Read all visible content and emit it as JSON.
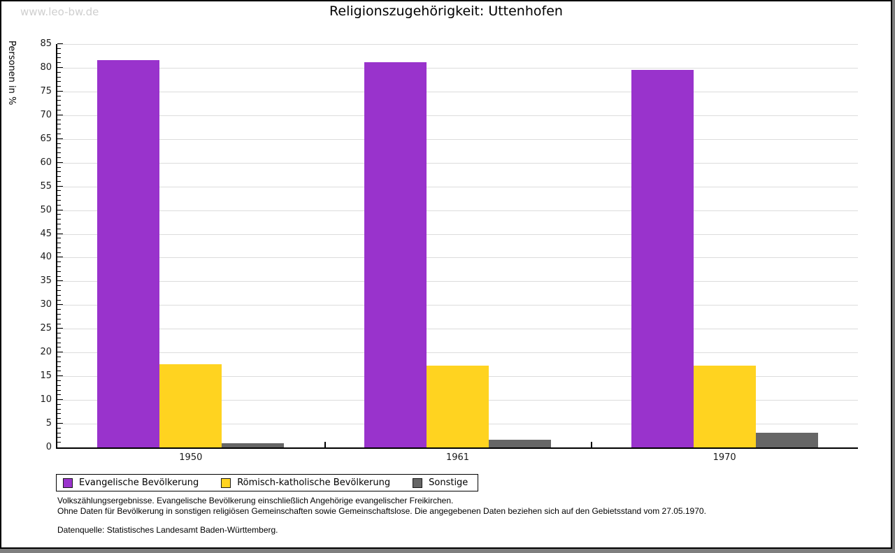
{
  "watermark": "www.leo-bw.de",
  "title": "Religionszugehörigkeit: Uttenhofen",
  "chart_data": {
    "type": "bar",
    "title": "Religionszugehörigkeit: Uttenhofen",
    "xlabel": "",
    "ylabel": "Personen in %",
    "categories": [
      "1950",
      "1961",
      "1970"
    ],
    "series": [
      {
        "name": "Evangelische Bevölkerung",
        "color": "#9933CC",
        "values": [
          81.6,
          81.2,
          79.6
        ]
      },
      {
        "name": "Römisch-katholische Bevölkerung",
        "color": "#FFD320",
        "values": [
          17.5,
          17.2,
          17.3
        ]
      },
      {
        "name": "Sonstige",
        "color": "#666666",
        "values": [
          0.9,
          1.6,
          3.1
        ]
      }
    ],
    "ylim": [
      0,
      85
    ],
    "ytick_step": 5,
    "minor_tick_step": 1,
    "grid": true,
    "legend_position": "bottom-left"
  },
  "colors": {
    "gridline": "#dcdcdc",
    "axis": "#000000",
    "watermark": "#cfcfcf"
  },
  "footnotes": {
    "line1": "Volkszählungsergebnisse. Evangelische Bevölkerung einschließlich Angehörige evangelischer Freikirchen.",
    "line2": "Ohne Daten für Bevölkerung in sonstigen religiösen Gemeinschaften sowie Gemeinschaftslose. Die angegebenen Daten beziehen sich auf den Gebietsstand vom 27.05.1970.",
    "source": "Datenquelle: Statistisches Landesamt Baden-Württemberg."
  }
}
